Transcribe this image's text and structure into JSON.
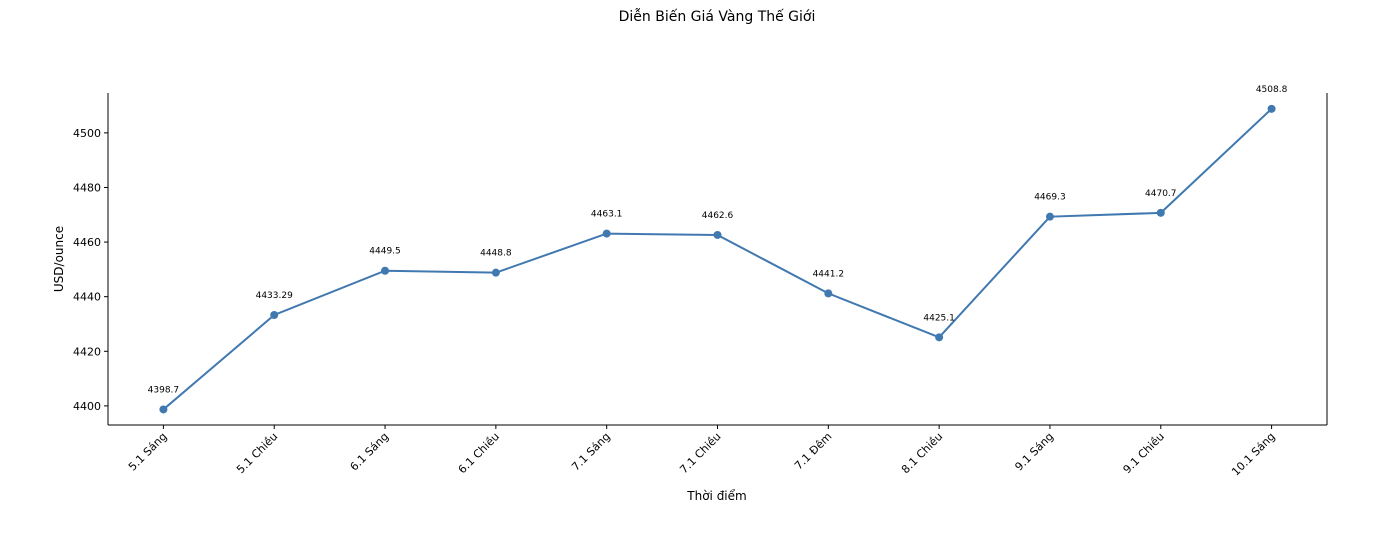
{
  "chart_data": {
    "type": "line",
    "title": "Diễn Biến Giá Vàng Thế Giới",
    "xlabel": "Thời điểm",
    "ylabel": "USD/ounce",
    "categories": [
      "5.1 Sáng",
      "5.1 Chiều",
      "6.1 Sáng",
      "6.1 Chiều",
      "7.1 Sáng",
      "7.1 Chiều",
      "7.1 Đêm",
      "8.1 Chiều",
      "9.1 Sáng",
      "9.1 Chiều",
      "10.1 Sáng"
    ],
    "values": [
      4398.7,
      4433.29,
      4449.5,
      4448.8,
      4463.1,
      4462.6,
      4441.2,
      4425.1,
      4469.3,
      4470.7,
      4508.8
    ],
    "data_labels": [
      "4398.7",
      "4433.29",
      "4449.5",
      "4448.8",
      "4463.1",
      "4462.6",
      "4441.2",
      "4425.1",
      "4469.3",
      "4470.7",
      "4508.8"
    ],
    "yticks": [
      "4400",
      "4420",
      "4440",
      "4460",
      "4480",
      "4500"
    ],
    "ylim": [
      4393.0,
      4514.6
    ],
    "grid": false,
    "line_color": "#4078b0"
  }
}
